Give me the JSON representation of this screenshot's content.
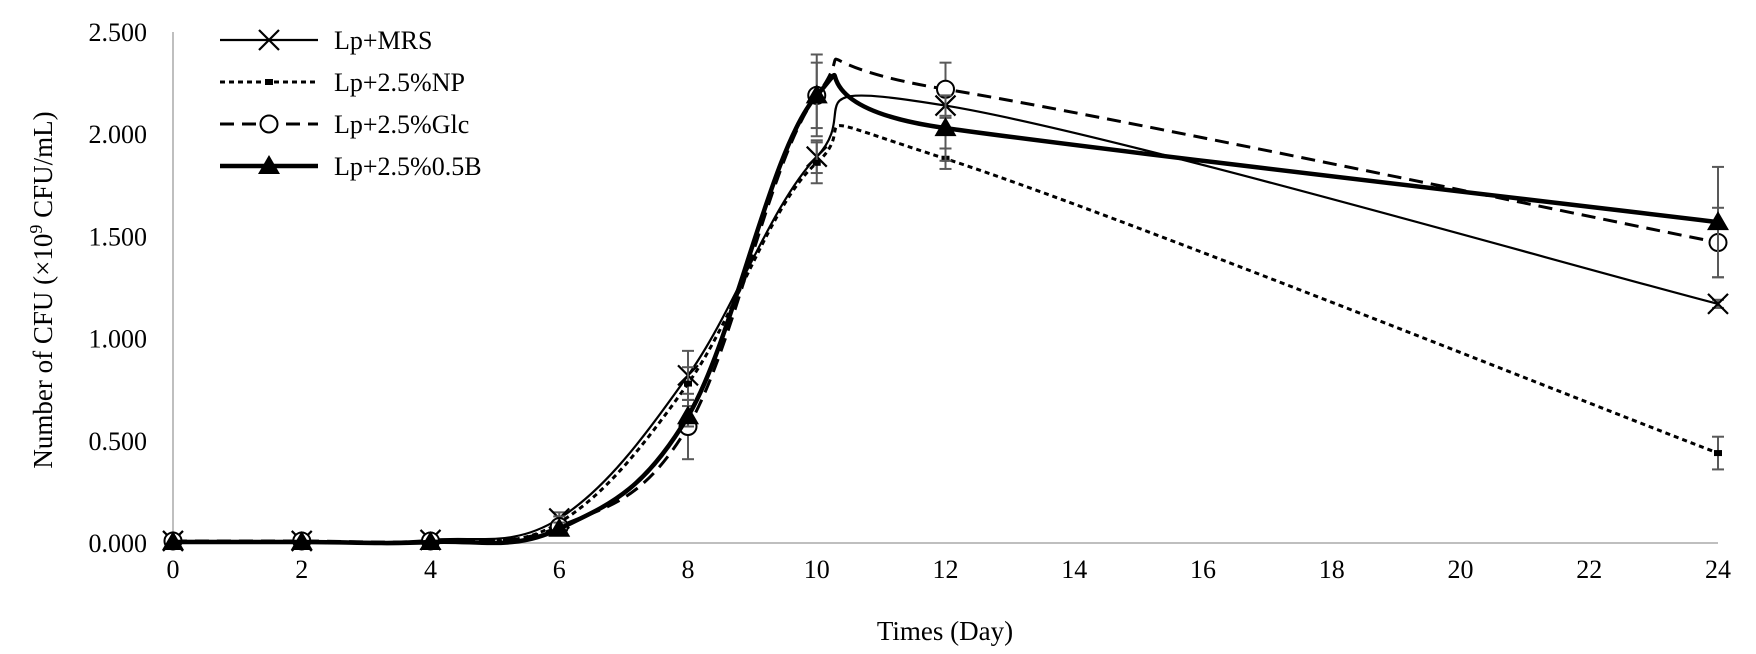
{
  "chart_data": {
    "type": "line",
    "xlabel": "Times (Day)",
    "ylabel": "Number of CFU (×10",
    "ylabel_sup": "9",
    "ylabel_tail": " CFU/mL)",
    "xlim": [
      0,
      24
    ],
    "ylim": [
      0,
      2.5
    ],
    "x_ticks": [
      0,
      2,
      4,
      6,
      8,
      10,
      12,
      14,
      16,
      18,
      20,
      22,
      24
    ],
    "y_ticks": [
      "0.000",
      "0.500",
      "1.000",
      "1.500",
      "2.000",
      "2.500"
    ],
    "grid": false,
    "legend_position": "top-left",
    "x": [
      0,
      2,
      4,
      6,
      8,
      10,
      12,
      24
    ],
    "series": [
      {
        "name": "Lp+MRS",
        "marker": "x",
        "line": "solid-thin",
        "values": [
          0.01,
          0.01,
          0.015,
          0.12,
          0.82,
          1.89,
          2.14,
          1.17
        ],
        "errors": [
          0,
          0,
          0,
          0.03,
          0.12,
          0.08,
          0.06,
          0.02
        ]
      },
      {
        "name": "Lp+2.5%NP",
        "marker": "dash",
        "line": "dotted",
        "values": [
          0.005,
          0.005,
          0.01,
          0.1,
          0.78,
          1.86,
          1.88,
          0.44
        ],
        "errors": [
          0,
          0,
          0,
          0.03,
          0.08,
          0.1,
          0.05,
          0.08
        ]
      },
      {
        "name": "Lp+2.5%Glc",
        "marker": "circle",
        "line": "dashed",
        "values": [
          0.01,
          0.01,
          0.01,
          0.08,
          0.57,
          2.19,
          2.22,
          1.47
        ],
        "errors": [
          0,
          0,
          0,
          0.03,
          0.16,
          0.2,
          0.13,
          0.17
        ]
      },
      {
        "name": "Lp+2.5%0.5B",
        "marker": "triangle",
        "line": "solid-thick",
        "values": [
          0.005,
          0.005,
          0.005,
          0.07,
          0.62,
          2.19,
          2.03,
          1.57
        ],
        "errors": [
          0,
          0,
          0,
          0.03,
          0.05,
          0.16,
          0.16,
          0.27
        ]
      }
    ]
  }
}
